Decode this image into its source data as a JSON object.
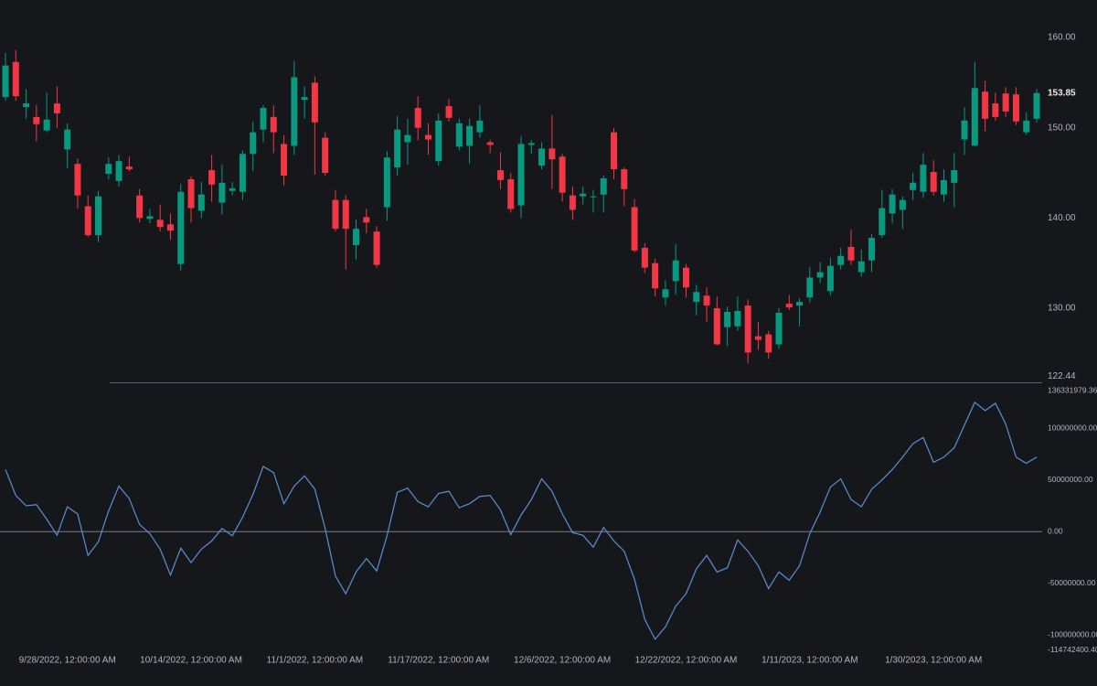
{
  "chart_data": [
    {
      "type": "candlestick",
      "categories": [
        null,
        null,
        null,
        null,
        null,
        null,
        "9/28/2022, 12:00:00 AM",
        null,
        null,
        null,
        null,
        null,
        null,
        null,
        null,
        null,
        null,
        null,
        "10/14/2022, 12:00:00 AM",
        null,
        null,
        null,
        null,
        null,
        null,
        null,
        null,
        null,
        null,
        null,
        "11/1/2022, 12:00:00 AM",
        null,
        null,
        null,
        null,
        null,
        null,
        null,
        null,
        null,
        null,
        null,
        "11/17/2022, 12:00:00 AM",
        null,
        null,
        null,
        null,
        null,
        null,
        null,
        null,
        null,
        null,
        null,
        "12/6/2022, 12:00:00 AM",
        null,
        null,
        null,
        null,
        null,
        null,
        null,
        null,
        null,
        null,
        null,
        "12/22/2022, 12:00:00 AM",
        null,
        null,
        null,
        null,
        null,
        null,
        null,
        null,
        null,
        null,
        null,
        "1/11/2023, 12:00:00 AM",
        null,
        null,
        null,
        null,
        null,
        null,
        null,
        null,
        null,
        null,
        null,
        "1/30/2023, 12:00:00 AM",
        null,
        null,
        null,
        null,
        null,
        null,
        null,
        null,
        null,
        null
      ],
      "open": [
        153.4,
        157.3,
        152.3,
        151.2,
        149.7,
        152.7,
        147.6,
        146,
        141.3,
        138.1,
        144.9,
        144.1,
        145.7,
        142.5,
        139.9,
        139.8,
        139.3,
        134.9,
        144.3,
        140.8,
        145.3,
        141.7,
        143,
        142.9,
        147.1,
        149.8,
        151.2,
        148.2,
        148,
        153.1,
        155,
        148.9,
        142,
        142,
        137,
        140.1,
        138.5,
        141.2,
        145.6,
        148.4,
        152.2,
        149.2,
        146.3,
        152.4,
        147.9,
        148,
        149.5,
        148.4,
        145.3,
        144.3,
        141.4,
        148.1,
        145.8,
        147.7,
        146.8,
        142.5,
        142.4,
        142.3,
        142.6,
        149.5,
        145.4,
        141.2,
        136.7,
        135,
        131.2,
        133,
        134.5,
        130.7,
        131.4,
        130,
        127.9,
        128,
        130.3,
        126.9,
        127.1,
        126,
        130.5,
        130.3,
        131.2,
        133.4,
        131.9,
        134.8,
        136.8,
        134,
        135.3,
        138.1,
        140.5,
        140.9,
        143.1,
        142.9,
        145.1,
        142.6,
        143.9,
        148.7,
        148,
        154,
        152.7,
        153.8,
        153.7,
        149.5,
        151
      ],
      "high": [
        158.3,
        158.6,
        154.3,
        152.5,
        153.9,
        154.6,
        150.5,
        146.6,
        142.5,
        143,
        146.7,
        147,
        146.8,
        143.2,
        141,
        141.5,
        140.5,
        143.8,
        144.6,
        144,
        147,
        145.9,
        144,
        147.5,
        150.7,
        152.5,
        152.5,
        149.2,
        157.4,
        154.6,
        155.7,
        149.5,
        143.1,
        142.5,
        139.8,
        141,
        139.1,
        147.4,
        151.3,
        151,
        153.5,
        150.5,
        151.6,
        153.2,
        151,
        151,
        152.5,
        148.7,
        147.3,
        145,
        149.1,
        148.6,
        148.4,
        151.4,
        147.1,
        143.5,
        143.5,
        143.1,
        144.7,
        150,
        145.6,
        142.1,
        137.2,
        135.5,
        133.1,
        137.1,
        134.9,
        132.6,
        132.3,
        131.3,
        130.2,
        131.3,
        131,
        128.5,
        127.5,
        130,
        131.5,
        131.1,
        134.6,
        135.1,
        135.6,
        136.7,
        138.7,
        136.5,
        138.2,
        143.1,
        143.2,
        142.4,
        145,
        147.2,
        146.4,
        145.4,
        147.2,
        152.3,
        157.3,
        155.2,
        153.9,
        154.5,
        154.5,
        151.7,
        154.3
      ],
      "low": [
        153,
        153,
        151,
        148.5,
        149.5,
        150,
        145.5,
        141,
        137.9,
        137.3,
        144.3,
        143.5,
        145.2,
        139.5,
        139.4,
        138.5,
        137.6,
        134.2,
        139.5,
        140,
        141.8,
        140.4,
        142.5,
        142,
        145.2,
        148.4,
        147.2,
        143.6,
        147,
        151,
        144.8,
        144.7,
        138.5,
        134.3,
        135.4,
        138.3,
        134.5,
        139.7,
        144.7,
        145.9,
        148.6,
        147,
        145.8,
        150.7,
        147.5,
        146,
        148.9,
        147.2,
        143.2,
        140.6,
        140,
        147.1,
        145.4,
        143.2,
        141.8,
        139.8,
        141.5,
        140.6,
        140.6,
        144.3,
        141.3,
        136.2,
        133.9,
        131.3,
        130.3,
        131.5,
        131.2,
        129.2,
        128.5,
        125.9,
        125.8,
        127.5,
        123.9,
        125.4,
        124.4,
        125.5,
        129.8,
        128,
        130.6,
        132.8,
        131.4,
        134.3,
        134.8,
        133.5,
        134,
        137.8,
        139.4,
        138.8,
        142,
        142.2,
        142.5,
        141.8,
        141.2,
        147,
        148,
        149.6,
        150.8,
        151.2,
        150.3,
        149.2,
        150.6
      ],
      "close": [
        156.9,
        153.5,
        152.7,
        150.4,
        150.9,
        151.6,
        149.8,
        142.5,
        138.1,
        142.4,
        146,
        146.3,
        145.4,
        140,
        140.2,
        139,
        138.6,
        142.9,
        141.1,
        142.6,
        143.7,
        143.9,
        143.3,
        147.1,
        149.5,
        152.2,
        149.5,
        144.7,
        155.6,
        153.4,
        150.6,
        145,
        138.8,
        138.8,
        138.8,
        139.5,
        134.8,
        146.7,
        149.8,
        149.2,
        150,
        148.7,
        150.8,
        151.1,
        150.5,
        150.2,
        150.8,
        148.1,
        144.2,
        141,
        148.2,
        148.3,
        147.7,
        146.5,
        142.8,
        140.9,
        142.7,
        142.4,
        144.4,
        145.4,
        143.2,
        136.4,
        134.5,
        132.2,
        132.1,
        135.3,
        132.3,
        131.8,
        130.3,
        126,
        129.6,
        129.7,
        125.1,
        126.5,
        125.1,
        129.5,
        130.1,
        130.7,
        133.4,
        134,
        134.7,
        135.8,
        135.3,
        135.2,
        137.8,
        141.1,
        142.6,
        142,
        143.9,
        145.9,
        142.9,
        144.2,
        145.3,
        150.8,
        154.4,
        151,
        151.2,
        151.8,
        150.7,
        150.8,
        153.85
      ],
      "up_color": "#089981",
      "down_color": "#f23645",
      "ylim": [
        121.79,
        164.16
      ],
      "yticks": [
        {
          "value": 160,
          "label": "160.00"
        },
        {
          "value": 150,
          "label": "150.00"
        },
        {
          "value": 140,
          "label": "140.00"
        },
        {
          "value": 130,
          "label": "130.00"
        },
        122.44
      ],
      "last_price": 153.85
    },
    {
      "type": "line",
      "color": "#5b8fd6",
      "values": [
        60000000,
        35000000,
        25000000,
        26000000,
        12000000,
        -3500000,
        24000000,
        17000000,
        -23000000,
        -10000000,
        20000000,
        44000000,
        32000000,
        7000000,
        -2000000,
        -17000000,
        -42000000,
        -16000000,
        -30000000,
        -17000000,
        -9000000,
        3000000,
        -4000000,
        14000000,
        36000000,
        63000000,
        57000000,
        27000000,
        44000000,
        54000000,
        41000000,
        3000000,
        -43000000,
        -60000000,
        -39000000,
        -26000000,
        -38000000,
        -4000000,
        38000000,
        42000000,
        29000000,
        24000000,
        37000000,
        39000000,
        23000000,
        27000000,
        34000000,
        35000000,
        21000000,
        -3000000,
        16000000,
        31000000,
        51000000,
        39000000,
        17000000,
        -1000000,
        -3500000,
        -15000000,
        4000000,
        -9000000,
        -19000000,
        -46000000,
        -85000000,
        -104000000,
        -92000000,
        -72000000,
        -60000000,
        -36000000,
        -23000000,
        -39000000,
        -35000000,
        -8000000,
        -19000000,
        -33000000,
        -55000000,
        -39000000,
        -47000000,
        -33000000,
        -2000000,
        19000000,
        43000000,
        51000000,
        31000000,
        24000000,
        41000000,
        50000000,
        60000000,
        72000000,
        85000000,
        91000000,
        67000000,
        72000000,
        81000000,
        103000000,
        125000000,
        117000000,
        124000000,
        104000000,
        72000000,
        66000000,
        72000000
      ],
      "ylim": [
        -118280000,
        144290000
      ],
      "yticks": [
        136331979.36,
        {
          "value": 100000000,
          "label": "100000000.00"
        },
        {
          "value": 50000000,
          "label": "50000000.00"
        },
        {
          "value": 0,
          "label": "0.00"
        },
        {
          "value": -50000000,
          "label": "-50000000.00"
        },
        {
          "value": -100000000,
          "label": "-100000000.00"
        },
        {
          "value": -114742400.4,
          "label": "-114742400.40"
        }
      ],
      "zero_line": true
    }
  ]
}
